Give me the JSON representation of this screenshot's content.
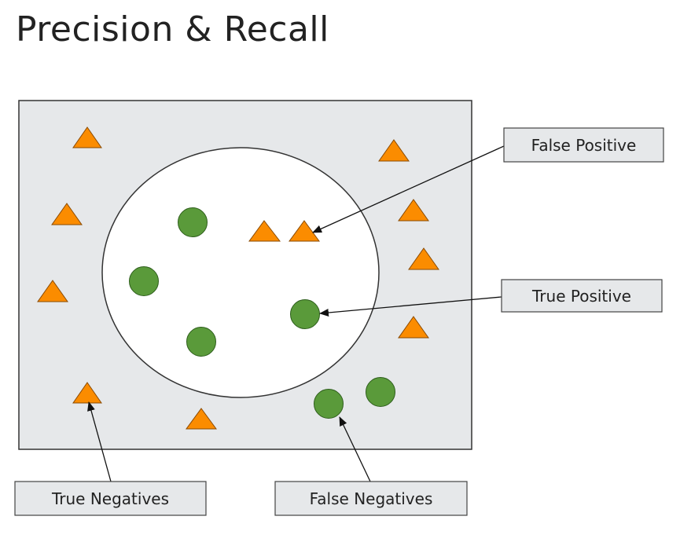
{
  "title": "Precision & Recall",
  "colors": {
    "background": "#ffffff",
    "universe_fill": "#e6e8ea",
    "universe_stroke": "#333333",
    "selection_fill": "#ffffff",
    "negative_fill": "#fb8c00",
    "negative_stroke": "#8a4a00",
    "positive_fill": "#5a9a3a",
    "positive_stroke": "#2e5e1c",
    "label_fill": "#e6e8ea",
    "label_stroke": "#444444",
    "arrow": "#111111"
  },
  "icons": {
    "negative": "triangle-icon",
    "positive": "circle-icon"
  },
  "labels": {
    "false_positive": "False Positive",
    "true_positive": "True Positive",
    "true_negatives": "True Negatives",
    "false_negatives": "False Negatives"
  }
}
